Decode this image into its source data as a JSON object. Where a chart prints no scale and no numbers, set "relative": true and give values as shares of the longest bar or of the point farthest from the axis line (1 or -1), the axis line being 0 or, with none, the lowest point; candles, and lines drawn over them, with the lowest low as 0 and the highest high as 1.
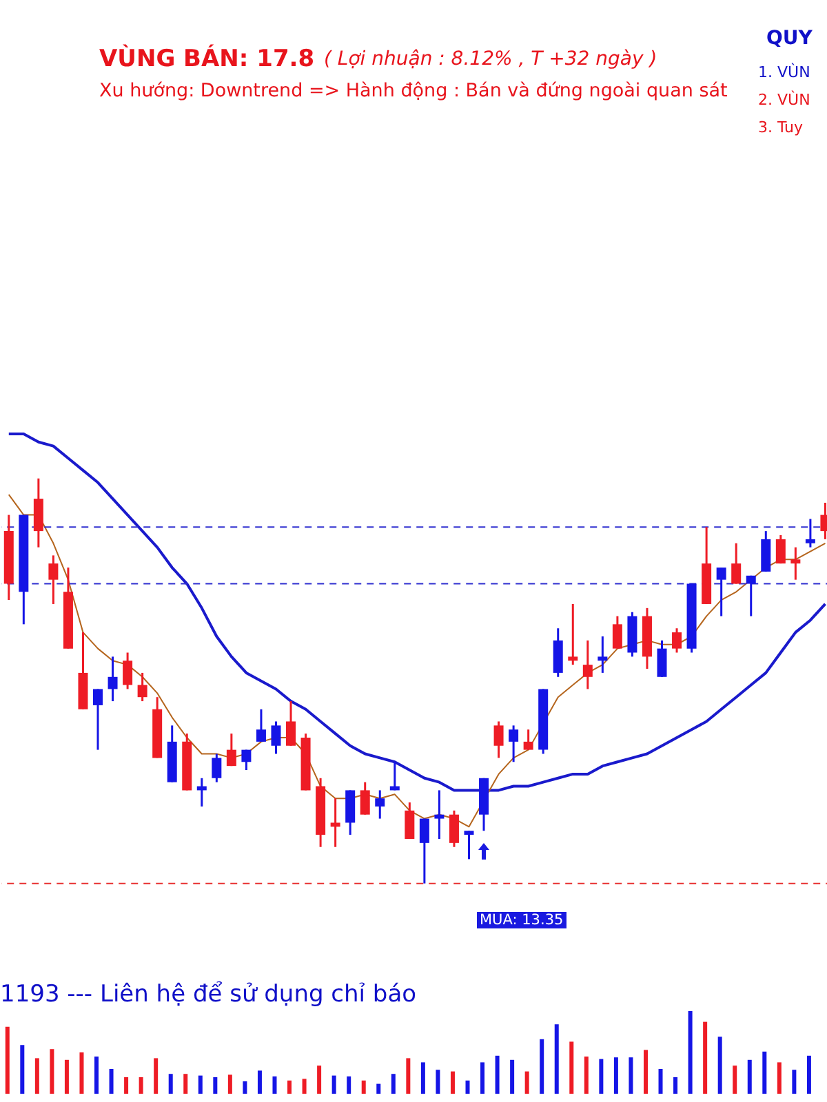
{
  "chart_data": [
    {
      "type": "candlestick",
      "relative": true,
      "title": "VÙNG BÁN:  17.8",
      "subtitle": "( Lợi nhuận  : 8.12% ,  T +32 ngày )",
      "annotations": [
        "Xu hướng:  Downtrend => Hành động : Bán và đứng ngoài quan sát",
        "QUY",
        "1. VÙN",
        "2. VÙN",
        "3. Tuy",
        "MUA: 13.35"
      ],
      "categories": [
        null,
        null,
        null,
        null,
        null,
        null,
        null,
        null,
        null,
        null,
        null,
        null,
        null,
        null,
        null,
        null,
        null,
        null,
        null,
        null,
        null,
        null,
        null,
        null,
        null,
        null,
        null,
        null,
        null,
        null,
        null,
        null,
        null,
        null,
        null,
        null,
        null,
        null,
        null,
        null,
        null,
        null,
        null,
        null,
        null,
        null,
        null,
        null,
        null,
        null,
        null,
        null,
        null,
        null,
        null,
        null
      ],
      "ohlc": [
        [
          0.87,
          0.91,
          0.7,
          0.74
        ],
        [
          0.72,
          0.91,
          0.64,
          0.91
        ],
        [
          0.95,
          1.0,
          0.83,
          0.87
        ],
        [
          0.79,
          0.81,
          0.69,
          0.75
        ],
        [
          0.72,
          0.78,
          0.58,
          0.58
        ],
        [
          0.52,
          0.62,
          0.43,
          0.43
        ],
        [
          0.44,
          0.48,
          0.33,
          0.48
        ],
        [
          0.48,
          0.56,
          0.45,
          0.51
        ],
        [
          0.55,
          0.57,
          0.48,
          0.49
        ],
        [
          0.49,
          0.52,
          0.45,
          0.46
        ],
        [
          0.43,
          0.46,
          0.31,
          0.31
        ],
        [
          0.25,
          0.39,
          0.25,
          0.35
        ],
        [
          0.35,
          0.37,
          0.23,
          0.23
        ],
        [
          0.23,
          0.26,
          0.19,
          0.24
        ],
        [
          0.26,
          0.32,
          0.25,
          0.31
        ],
        [
          0.33,
          0.37,
          0.29,
          0.29
        ],
        [
          0.3,
          0.33,
          0.28,
          0.33
        ],
        [
          0.35,
          0.43,
          0.35,
          0.38
        ],
        [
          0.34,
          0.4,
          0.32,
          0.39
        ],
        [
          0.4,
          0.45,
          0.34,
          0.34
        ],
        [
          0.36,
          0.37,
          0.23,
          0.23
        ],
        [
          0.24,
          0.26,
          0.09,
          0.12
        ],
        [
          0.15,
          0.21,
          0.09,
          0.14
        ],
        [
          0.15,
          0.23,
          0.12,
          0.23
        ],
        [
          0.23,
          0.25,
          0.17,
          0.17
        ],
        [
          0.19,
          0.23,
          0.16,
          0.21
        ],
        [
          0.23,
          0.3,
          0.23,
          0.24
        ],
        [
          0.18,
          0.2,
          0.11,
          0.11
        ],
        [
          0.1,
          0.16,
          0,
          0.16
        ],
        [
          0.16,
          0.23,
          0.11,
          0.17
        ],
        [
          0.17,
          0.18,
          0.09,
          0.1
        ],
        [
          0.12,
          0.13,
          0.06,
          0.13
        ],
        [
          0.17,
          0.26,
          0.13,
          0.26
        ],
        [
          0.39,
          0.4,
          0.31,
          0.34
        ],
        [
          0.35,
          0.39,
          0.3,
          0.38
        ],
        [
          0.35,
          0.38,
          0.33,
          0.33
        ],
        [
          0.33,
          0.48,
          0.32,
          0.48
        ],
        [
          0.52,
          0.63,
          0.51,
          0.6
        ],
        [
          0.56,
          0.69,
          0.54,
          0.55
        ],
        [
          0.54,
          0.6,
          0.48,
          0.51
        ],
        [
          0.55,
          0.61,
          0.52,
          0.56
        ],
        [
          0.64,
          0.66,
          0.58,
          0.58
        ],
        [
          0.57,
          0.67,
          0.56,
          0.66
        ],
        [
          0.66,
          0.68,
          0.53,
          0.56
        ],
        [
          0.51,
          0.6,
          0.51,
          0.58
        ],
        [
          0.62,
          0.63,
          0.57,
          0.58
        ],
        [
          0.58,
          0.74,
          0.57,
          0.74
        ],
        [
          0.79,
          0.88,
          0.69,
          0.69
        ],
        [
          0.75,
          0.78,
          0.66,
          0.78
        ],
        [
          0.79,
          0.84,
          0.74,
          0.74
        ],
        [
          0.74,
          0.76,
          0.66,
          0.76
        ],
        [
          0.77,
          0.87,
          0.77,
          0.85
        ],
        [
          0.85,
          0.86,
          0.79,
          0.79
        ],
        [
          0.8,
          0.83,
          0.75,
          0.79
        ],
        [
          0.84,
          0.9,
          0.83,
          0.85
        ],
        [
          0.91,
          0.94,
          0.85,
          0.87
        ]
      ],
      "colors": [
        "#ee1c25",
        "#1515e6",
        "#ee1c25",
        "#ee1c25",
        "#ee1c25",
        "#ee1c25",
        "#1515e6",
        "#1515e6",
        "#ee1c25",
        "#ee1c25",
        "#ee1c25",
        "#1515e6",
        "#ee1c25",
        "#1515e6",
        "#1515e6",
        "#ee1c25",
        "#1515e6",
        "#1515e6",
        "#1515e6",
        "#ee1c25",
        "#ee1c25",
        "#ee1c25",
        "#ee1c25",
        "#1515e6",
        "#ee1c25",
        "#1515e6",
        "#1515e6",
        "#ee1c25",
        "#1515e6",
        "#1515e6",
        "#ee1c25",
        "#1515e6",
        "#1515e6",
        "#ee1c25",
        "#1515e6",
        "#ee1c25",
        "#1515e6",
        "#1515e6",
        "#ee1c25",
        "#ee1c25",
        "#1515e6",
        "#ee1c25",
        "#1515e6",
        "#ee1c25",
        "#1515e6",
        "#ee1c25",
        "#1515e6",
        "#ee1c25",
        "#1515e6",
        "#ee1c25",
        "#1515e6",
        "#1515e6",
        "#ee1c25",
        "#ee1c25",
        "#1515e6",
        "#ee1c25"
      ],
      "series": [
        {
          "type": "line",
          "color": "#1a1acc",
          "values": [
            1.11,
            1.11,
            1.09,
            1.08,
            1.05,
            1.02,
            0.99,
            0.95,
            0.91,
            0.87,
            0.83,
            0.78,
            0.74,
            0.68,
            0.61,
            0.56,
            0.52,
            0.5,
            0.48,
            0.45,
            0.43,
            0.4,
            0.37,
            0.34,
            0.32,
            0.31,
            0.3,
            0.28,
            0.26,
            0.25,
            0.23,
            0.23,
            0.23,
            0.23,
            0.24,
            0.24,
            0.25,
            0.26,
            0.27,
            0.27,
            0.29,
            0.3,
            0.31,
            0.32,
            0.34,
            0.36,
            0.38,
            0.4,
            0.43,
            0.46,
            0.49,
            0.52,
            0.57,
            0.62,
            0.65,
            0.69
          ]
        },
        {
          "type": "line",
          "color": "#b5651d",
          "values": [
            0.96,
            0.91,
            0.91,
            0.84,
            0.75,
            0.62,
            0.58,
            0.55,
            0.54,
            0.51,
            0.47,
            0.41,
            0.36,
            0.32,
            0.32,
            0.31,
            0.32,
            0.35,
            0.36,
            0.36,
            0.32,
            0.24,
            0.21,
            0.21,
            0.22,
            0.21,
            0.22,
            0.18,
            0.16,
            0.17,
            0.16,
            0.14,
            null,
            0.27,
            0.31,
            0.33,
            null,
            0.46,
            0.49,
            0.52,
            0.54,
            0.58,
            0.59,
            0.6,
            0.59,
            0.59,
            0.61,
            0.66,
            0.7,
            0.72,
            0.75,
            0.78,
            0.8,
            0.8,
            0.82,
            0.84
          ]
        }
      ],
      "ref_lines": [
        {
          "axis": "y",
          "value": 0.74,
          "color": "#3030d0",
          "line_style": "dashed"
        },
        {
          "axis": "y",
          "value": 0.88,
          "color": "#3030d0",
          "line_style": "dashed"
        },
        {
          "axis": "y",
          "value": 0,
          "color": "#e83030",
          "line_style": "dashed"
        }
      ]
    },
    {
      "type": "bar",
      "relative": true,
      "annotations": [
        "1193  --- Liên hệ để sử dụng chỉ báo"
      ],
      "categories": [
        null,
        null,
        null,
        null,
        null,
        null,
        null,
        null,
        null,
        null,
        null,
        null,
        null,
        null,
        null,
        null,
        null,
        null,
        null,
        null,
        null,
        null,
        null,
        null,
        null,
        null,
        null,
        null,
        null,
        null,
        null,
        null,
        null,
        null,
        null,
        null,
        null,
        null,
        null,
        null,
        null,
        null,
        null,
        null,
        null,
        null,
        null,
        null,
        null,
        null,
        null,
        null,
        null,
        null,
        null
      ],
      "values": [
        0.81,
        0.59,
        0.43,
        0.54,
        0.41,
        0.5,
        0.45,
        0.3,
        0.2,
        0.2,
        0.43,
        0.24,
        0.24,
        0.22,
        0.2,
        0.23,
        0.15,
        0.28,
        0.21,
        0.16,
        0.18,
        0.34,
        0.22,
        0.21,
        0.16,
        0.12,
        0.24,
        0.43,
        0.38,
        0.29,
        0.27,
        0.16,
        0.38,
        0.46,
        0.41,
        0.27,
        0.66,
        0.84,
        0.63,
        0.45,
        0.42,
        0.44,
        0.44,
        0.53,
        0.3,
        0.2,
        1,
        0.87,
        0.69,
        0.34,
        0.41,
        0.51,
        0.38,
        0.29,
        0.46
      ],
      "colors": [
        "#ee1c25",
        "#1515e6",
        "#ee1c25",
        "#ee1c25",
        "#ee1c25",
        "#ee1c25",
        "#1515e6",
        "#1515e6",
        "#ee1c25",
        "#ee1c25",
        "#ee1c25",
        "#1515e6",
        "#ee1c25",
        "#1515e6",
        "#1515e6",
        "#ee1c25",
        "#1515e6",
        "#1515e6",
        "#1515e6",
        "#ee1c25",
        "#ee1c25",
        "#ee1c25",
        "#1515e6",
        "#1515e6",
        "#ee1c25",
        "#1515e6",
        "#1515e6",
        "#ee1c25",
        "#1515e6",
        "#1515e6",
        "#ee1c25",
        "#1515e6",
        "#1515e6",
        "#1515e6",
        "#1515e6",
        "#ee1c25",
        "#1515e6",
        "#1515e6",
        "#ee1c25",
        "#ee1c25",
        "#1515e6",
        "#1515e6",
        "#1515e6",
        "#ee1c25",
        "#1515e6",
        "#1515e6",
        "#1515e6",
        "#ee1c25",
        "#1515e6",
        "#ee1c25",
        "#1515e6",
        "#1515e6",
        "#ee1c25",
        "#1515e6",
        "#1515e6"
      ]
    }
  ]
}
